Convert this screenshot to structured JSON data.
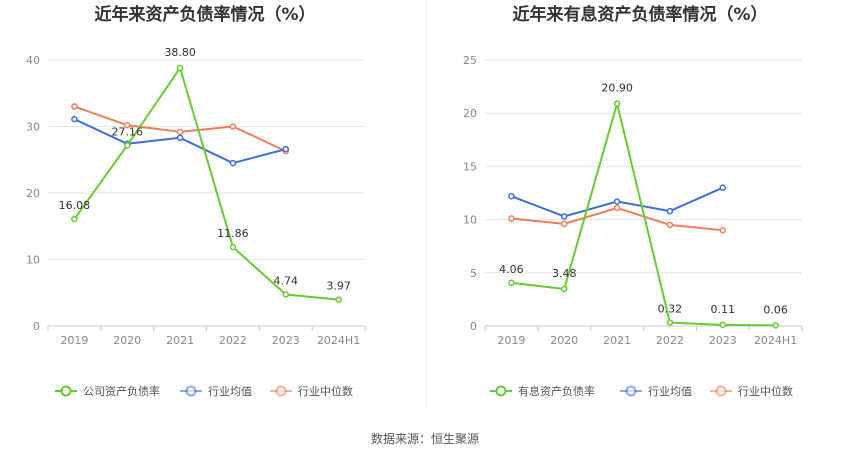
{
  "source": "数据来源：恒生聚源",
  "colors": {
    "main": "#66cc33",
    "avg": "#3f6fd8",
    "median": "#f07f5a",
    "grid": "#e6e6e6",
    "axis": "#cccccc"
  },
  "chart_data": [
    {
      "type": "line",
      "title": "近年来资产负债率情况（%）",
      "categories": [
        "2019",
        "2020",
        "2021",
        "2022",
        "2023",
        "2024H1"
      ],
      "ylim": [
        0,
        40
      ],
      "yticks": [
        0,
        10,
        20,
        30,
        40
      ],
      "grid": true,
      "legend": "bottom",
      "series": [
        {
          "name": "公司资产负债率",
          "color": "#66cc33",
          "values": [
            16.08,
            27.16,
            38.8,
            11.86,
            4.74,
            3.97
          ],
          "labels": [
            "16.08",
            "27.16",
            "38.80",
            "11.86",
            "4.74",
            "3.97"
          ]
        },
        {
          "name": "行业均值",
          "color": "#3f6fd8",
          "values": [
            31.1,
            27.4,
            28.3,
            24.5,
            26.6,
            null
          ]
        },
        {
          "name": "行业中位数",
          "color": "#f07f5a",
          "values": [
            33.0,
            30.2,
            29.2,
            30.0,
            26.3,
            null
          ]
        }
      ]
    },
    {
      "type": "line",
      "title": "近年来有息资产负债率情况（%）",
      "categories": [
        "2019",
        "2020",
        "2021",
        "2022",
        "2023",
        "2024H1"
      ],
      "ylim": [
        0,
        25
      ],
      "yticks": [
        0,
        5,
        10,
        15,
        20,
        25
      ],
      "grid": true,
      "legend": "bottom",
      "series": [
        {
          "name": "有息资产负债率",
          "color": "#66cc33",
          "values": [
            4.06,
            3.48,
            20.9,
            0.32,
            0.11,
            0.06
          ],
          "labels": [
            "4.06",
            "3.48",
            "20.90",
            "0.32",
            "0.11",
            "0.06"
          ]
        },
        {
          "name": "行业均值",
          "color": "#3f6fd8",
          "values": [
            12.2,
            10.3,
            11.7,
            10.8,
            13.0,
            null
          ]
        },
        {
          "name": "行业中位数",
          "color": "#f07f5a",
          "values": [
            10.1,
            9.6,
            11.1,
            9.5,
            9.0,
            null
          ]
        }
      ]
    }
  ]
}
